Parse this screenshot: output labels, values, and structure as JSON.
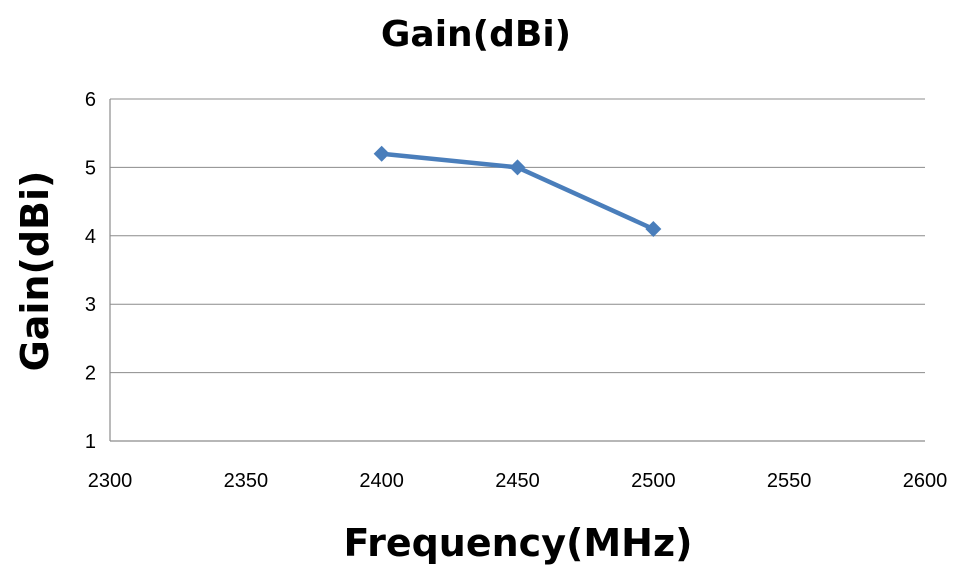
{
  "chart_data": {
    "type": "line",
    "title": "Gain(dBi)",
    "xlabel": "Frequency(MHz)",
    "ylabel": "Gain(dBi)",
    "xlim": [
      2300,
      2600
    ],
    "ylim": [
      1,
      6
    ],
    "xticks": [
      2300,
      2350,
      2400,
      2450,
      2500,
      2550,
      2600
    ],
    "yticks": [
      1,
      2,
      3,
      4,
      5,
      6
    ],
    "grid": true,
    "legend": "none",
    "series": [
      {
        "color": "#4a7ebb",
        "marker": "diamond",
        "x": [
          2400,
          2450,
          2500
        ],
        "y": [
          5.2,
          5.0,
          4.1
        ]
      }
    ]
  }
}
